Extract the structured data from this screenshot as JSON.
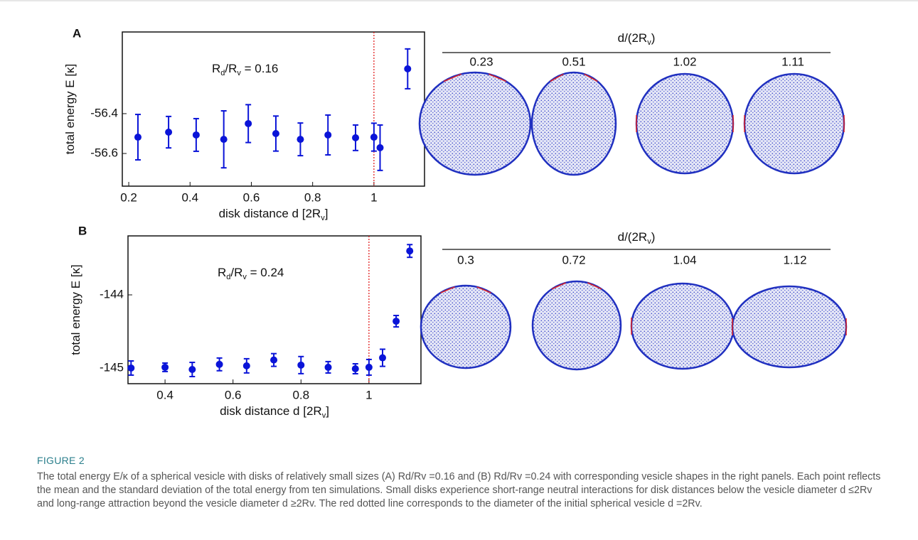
{
  "chart_data": [
    {
      "type": "errorbar",
      "panel": "A",
      "color": "#0a14d8",
      "annotation": [
        {
          "text": "R"
        },
        {
          "text": "d",
          "sub": true
        },
        {
          "text": "/R"
        },
        {
          "text": "v",
          "sub": true
        },
        {
          "text": " = 0.16"
        }
      ],
      "y_label": [
        {
          "text": "total energy E [κ]"
        }
      ],
      "x_label": [
        {
          "text": "disk distance d [2R"
        },
        {
          "text": "v",
          "sub": true
        },
        {
          "text": "]"
        }
      ],
      "x": [
        0.23,
        0.33,
        0.42,
        0.51,
        0.59,
        0.68,
        0.76,
        0.85,
        0.94,
        1.0,
        1.02,
        1.11
      ],
      "values": [
        -56.518,
        -56.493,
        -56.507,
        -56.529,
        -56.45,
        -56.5,
        -56.529,
        -56.507,
        -56.521,
        -56.518,
        -56.571,
        -56.175
      ],
      "errors": [
        0.114,
        0.079,
        0.082,
        0.143,
        0.095,
        0.088,
        0.082,
        0.1,
        0.064,
        0.07,
        0.114,
        0.1
      ],
      "xlim": [
        0.179,
        1.165
      ],
      "xticks": [
        0.2,
        0.4,
        0.6,
        0.8,
        1
      ],
      "ylim": [
        -56.764,
        -55.99
      ],
      "yticks": [
        -56.6,
        -56.4
      ],
      "vline": {
        "x": 1,
        "color": "#e01010"
      },
      "grid": false
    },
    {
      "type": "errorbar",
      "panel": "B",
      "color": "#0a14d8",
      "annotation": [
        {
          "text": "R"
        },
        {
          "text": "d",
          "sub": true
        },
        {
          "text": "/R"
        },
        {
          "text": "v",
          "sub": true
        },
        {
          "text": " = 0.24"
        }
      ],
      "y_label": [
        {
          "text": "total energy E [κ]"
        }
      ],
      "x_label": [
        {
          "text": "disk distance d [2R"
        },
        {
          "text": "v",
          "sub": true
        },
        {
          "text": "]"
        }
      ],
      "x": [
        0.3,
        0.4,
        0.48,
        0.56,
        0.64,
        0.72,
        0.8,
        0.88,
        0.96,
        1.0,
        1.04,
        1.08,
        1.12
      ],
      "values": [
        -145.0,
        -144.99,
        -145.02,
        -144.95,
        -144.97,
        -144.89,
        -144.96,
        -144.99,
        -145.01,
        -144.99,
        -144.86,
        -144.36,
        -143.4
      ],
      "errors": [
        0.097,
        0.058,
        0.097,
        0.087,
        0.097,
        0.087,
        0.117,
        0.078,
        0.068,
        0.107,
        0.117,
        0.078,
        0.087
      ],
      "xlim": [
        0.291,
        1.153
      ],
      "xticks": [
        0.4,
        0.6,
        0.8,
        1
      ],
      "ylim": [
        -145.214,
        -143.194
      ],
      "yticks": [
        -145,
        -144
      ],
      "vline": {
        "x": 1,
        "color": "#e01010"
      },
      "grid": false
    }
  ],
  "shapes": [
    {
      "title": [
        {
          "text": "d/(2R"
        },
        {
          "text": "v",
          "sub": true
        },
        {
          "text": ")"
        }
      ],
      "labels": [
        0.23,
        0.51,
        1.02,
        1.11
      ]
    },
    {
      "title": [
        {
          "text": "d/(2R"
        },
        {
          "text": "v",
          "sub": true
        },
        {
          "text": ")"
        }
      ],
      "labels": [
        0.3,
        0.72,
        1.04,
        1.12
      ]
    }
  ],
  "caption": {
    "label": "FIGURE 2",
    "text": "The total energy E/κ of a spherical vesicle with disks of relatively small sizes (A) Rd/Rv =0.16 and (B) Rd/Rv =0.24 with corresponding vesicle shapes in the right panels. Each point reflects the mean and the standard deviation of the total energy from ten simulations. Small disks experience short-range neutral interactions for disk distances below the vesicle diameter d ≤2Rv and long-range attraction beyond the vesicle diameter d ≥2Rv. The red dotted line corresponds to the diameter of the initial spherical vesicle d =2Rv."
  }
}
